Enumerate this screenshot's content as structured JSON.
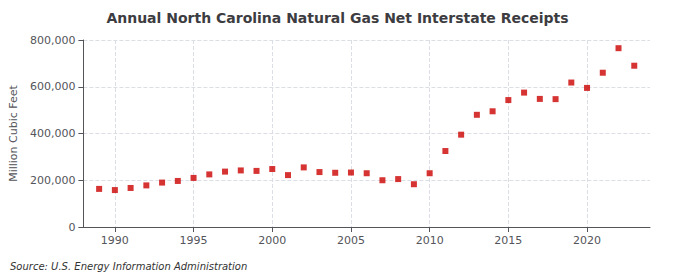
{
  "chart_data": {
    "type": "scatter",
    "title": "Annual North Carolina Natural Gas Net Interstate Receipts",
    "ylabel": "Million Cubic Feet",
    "annotations": [
      "Source: U.S. Energy Information Administration"
    ],
    "x": [
      1989,
      1990,
      1991,
      1992,
      1993,
      1994,
      1995,
      1996,
      1997,
      1998,
      1999,
      2000,
      2001,
      2002,
      2003,
      2004,
      2005,
      2006,
      2007,
      2008,
      2009,
      2010,
      2011,
      2012,
      2013,
      2014,
      2015,
      2016,
      2017,
      2018,
      2019,
      2020,
      2021,
      2022,
      2023
    ],
    "values": [
      163000,
      158000,
      167000,
      178000,
      190000,
      197000,
      210000,
      225000,
      237000,
      242000,
      240000,
      248000,
      222000,
      255000,
      235000,
      232000,
      233000,
      230000,
      200000,
      205000,
      183000,
      230000,
      325000,
      395000,
      480000,
      495000,
      543000,
      575000,
      548000,
      547000,
      618000,
      595000,
      660000,
      765000,
      690000
    ],
    "color": "#cc0000",
    "marker": "square",
    "xlim": [
      1988,
      2024
    ],
    "xticks": [
      1990,
      1995,
      2000,
      2005,
      2010,
      2015,
      2020
    ],
    "ylim": [
      0,
      800000
    ],
    "yticks": [
      0,
      {
        "value": 200000,
        "label": "200,000"
      },
      {
        "value": 400000,
        "label": "400,000"
      },
      {
        "value": 600000,
        "label": "600,000"
      },
      {
        "value": 800000,
        "label": "800,000"
      }
    ],
    "grid": true
  }
}
